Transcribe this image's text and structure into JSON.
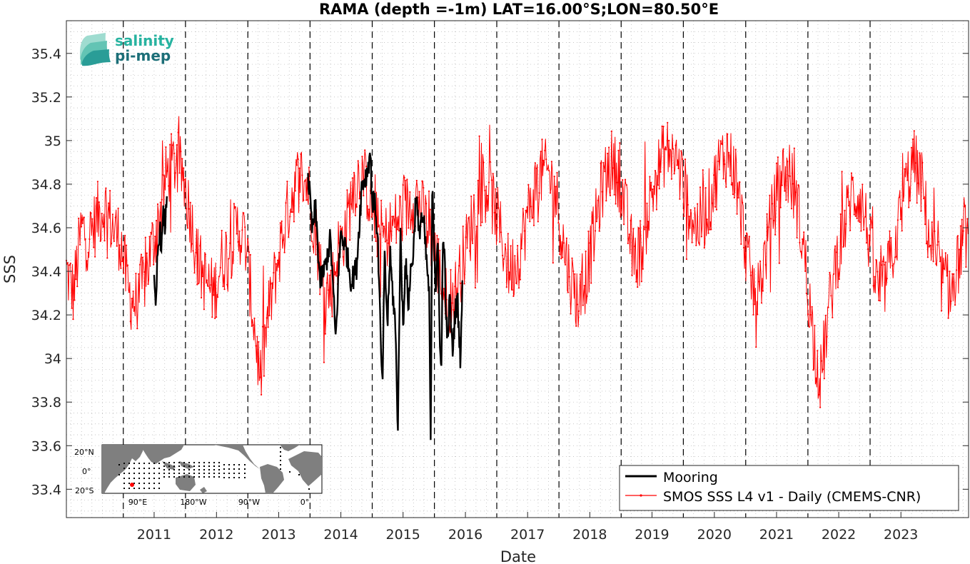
{
  "chart_data": {
    "type": "line",
    "title": "RAMA (depth =-1m) LAT=16.00°S;LON=80.50°E",
    "xlabel": "Date",
    "ylabel": "SSS",
    "xlim": [
      "2010-02-01",
      "2024-08-01"
    ],
    "ylim": [
      33.27,
      35.55
    ],
    "x_ticks": [
      "2011",
      "2012",
      "2013",
      "2014",
      "2015",
      "2016",
      "2017",
      "2018",
      "2019",
      "2020",
      "2021",
      "2022",
      "2023"
    ],
    "y_ticks": [
      "33.4",
      "33.6",
      "33.8",
      "34",
      "34.2",
      "34.4",
      "34.6",
      "34.8",
      "35",
      "35.2",
      "35.4"
    ],
    "grid": "minor dotted",
    "year_markers": "dashed vertical lines at January 1st",
    "legend_position": "bottom-right",
    "series": [
      {
        "name": "Mooring",
        "color": "#000000",
        "style": "thick line",
        "segments": [
          {
            "x": [
              "2011-07-01",
              "2011-07-10",
              "2011-07-20",
              "2011-08-01",
              "2011-08-15",
              "2011-08-25",
              "2011-09-05",
              "2011-09-15"
            ],
            "y": [
              34.35,
              34.19,
              34.45,
              34.6,
              34.52,
              34.66,
              34.6,
              34.8
            ]
          },
          {
            "x": [
              "2013-12-20",
              "2014-01-15",
              "2014-02-01",
              "2014-03-01",
              "2014-04-01",
              "2014-05-01",
              "2014-06-01",
              "2014-06-15",
              "2014-07-01",
              "2014-08-01",
              "2014-09-01",
              "2014-10-01",
              "2014-11-01",
              "2014-12-01",
              "2014-12-20",
              "2015-01-01",
              "2015-01-20",
              "2015-02-05",
              "2015-02-15",
              "2015-03-01",
              "2015-03-15",
              "2015-04-01",
              "2015-04-15",
              "2015-05-01",
              "2015-05-15",
              "2015-06-01",
              "2015-06-15",
              "2015-07-01",
              "2015-07-15",
              "2015-08-01",
              "2015-08-15",
              "2015-09-01",
              "2015-09-15",
              "2015-10-01",
              "2015-10-15",
              "2015-11-01",
              "2015-11-15",
              "2015-12-01",
              "2015-12-10",
              "2015-12-20",
              "2016-01-01",
              "2016-01-10",
              "2016-01-20",
              "2016-02-01",
              "2016-02-10",
              "2016-02-20",
              "2016-03-01",
              "2016-03-15",
              "2016-04-01",
              "2016-04-15",
              "2016-05-01",
              "2016-05-15",
              "2016-06-01",
              "2016-06-15"
            ],
            "y": [
              34.85,
              34.58,
              34.7,
              34.35,
              34.42,
              34.55,
              34.08,
              34.35,
              34.58,
              34.5,
              34.35,
              34.42,
              34.8,
              34.85,
              34.95,
              34.72,
              34.7,
              34.5,
              34.2,
              33.85,
              34.45,
              34.15,
              34.48,
              34.3,
              34.18,
              33.68,
              34.58,
              34.15,
              34.45,
              34.25,
              34.4,
              34.5,
              34.78,
              34.55,
              34.66,
              34.6,
              34.45,
              34.3,
              33.59,
              34.82,
              34.5,
              34.32,
              34.6,
              34.05,
              33.96,
              34.52,
              34.48,
              34.05,
              34.28,
              34.02,
              34.2,
              34.28,
              34.01,
              34.36
            ]
          }
        ]
      },
      {
        "name": "SMOS SSS L4 v1 - Daily (CMEMS-CNR)",
        "color": "#ff0000",
        "style": "thin line with point markers",
        "x": [
          "2010-02-01",
          "2010-03-15",
          "2010-05-01",
          "2010-06-15",
          "2010-08-01",
          "2010-09-15",
          "2010-11-01",
          "2010-12-15",
          "2011-02-01",
          "2011-03-15",
          "2011-05-01",
          "2011-06-15",
          "2011-08-01",
          "2011-09-15",
          "2011-11-01",
          "2011-12-15",
          "2012-02-01",
          "2012-03-15",
          "2012-05-01",
          "2012-06-15",
          "2012-08-01",
          "2012-09-15",
          "2012-11-01",
          "2012-12-15",
          "2013-02-01",
          "2013-03-15",
          "2013-05-01",
          "2013-06-15",
          "2013-08-01",
          "2013-09-15",
          "2013-11-01",
          "2013-12-15",
          "2014-02-01",
          "2014-03-15",
          "2014-05-01",
          "2014-06-15",
          "2014-08-01",
          "2014-09-15",
          "2014-11-01",
          "2014-12-15",
          "2015-02-01",
          "2015-03-15",
          "2015-05-01",
          "2015-06-15",
          "2015-08-01",
          "2015-09-15",
          "2015-11-01",
          "2015-12-15",
          "2016-02-01",
          "2016-03-15",
          "2016-05-01",
          "2016-06-15",
          "2016-08-01",
          "2016-09-15",
          "2016-11-01",
          "2016-12-15",
          "2017-02-01",
          "2017-03-15",
          "2017-05-01",
          "2017-06-15",
          "2017-08-01",
          "2017-09-15",
          "2017-11-01",
          "2017-12-15",
          "2018-02-01",
          "2018-03-15",
          "2018-05-01",
          "2018-06-15",
          "2018-08-01",
          "2018-09-15",
          "2018-11-01",
          "2018-12-15",
          "2019-02-01",
          "2019-03-15",
          "2019-05-01",
          "2019-06-15",
          "2019-08-01",
          "2019-09-15",
          "2019-11-01",
          "2019-12-15",
          "2020-02-01",
          "2020-03-15",
          "2020-05-01",
          "2020-06-15",
          "2020-08-01",
          "2020-09-15",
          "2020-11-01",
          "2020-12-15",
          "2021-02-01",
          "2021-03-15",
          "2021-05-01",
          "2021-06-15",
          "2021-08-01",
          "2021-09-15",
          "2021-11-01",
          "2021-12-15",
          "2022-02-01",
          "2022-03-15",
          "2022-05-01",
          "2022-06-15",
          "2022-08-01",
          "2022-09-15",
          "2022-11-01",
          "2022-12-15",
          "2023-02-01",
          "2023-03-15",
          "2023-05-01",
          "2023-06-15",
          "2023-08-01",
          "2023-09-15",
          "2023-11-01",
          "2023-12-15",
          "2024-02-01",
          "2024-03-15",
          "2024-05-01",
          "2024-06-15",
          "2024-08-01"
        ],
        "y": [
          34.4,
          34.3,
          34.6,
          34.55,
          34.65,
          34.7,
          34.6,
          34.55,
          34.3,
          34.25,
          34.35,
          34.5,
          34.65,
          34.85,
          34.9,
          34.85,
          34.65,
          34.45,
          34.35,
          34.3,
          34.45,
          34.5,
          34.6,
          34.55,
          34.2,
          33.9,
          34.2,
          34.4,
          34.6,
          34.75,
          34.85,
          34.8,
          34.6,
          34.35,
          34.3,
          34.5,
          34.6,
          34.8,
          34.85,
          34.75,
          34.6,
          34.55,
          34.6,
          34.65,
          34.7,
          34.75,
          34.65,
          34.55,
          34.4,
          34.25,
          34.3,
          34.45,
          34.6,
          34.75,
          34.8,
          34.7,
          34.55,
          34.4,
          34.45,
          34.6,
          34.75,
          34.85,
          34.85,
          34.75,
          34.5,
          34.35,
          34.25,
          34.4,
          34.6,
          34.8,
          34.9,
          34.85,
          34.65,
          34.45,
          34.5,
          34.7,
          34.85,
          34.95,
          34.95,
          34.85,
          34.7,
          34.6,
          34.65,
          34.75,
          34.9,
          34.95,
          34.85,
          34.6,
          34.35,
          34.3,
          34.5,
          34.7,
          34.85,
          34.85,
          34.7,
          34.45,
          34.1,
          33.9,
          34.2,
          34.45,
          34.6,
          34.75,
          34.75,
          34.6,
          34.35,
          34.3,
          34.45,
          34.6,
          34.8,
          34.9,
          34.8,
          34.55,
          34.4,
          34.35,
          34.3,
          34.5,
          34.6
        ]
      }
    ]
  },
  "logo": {
    "line1": "salinity",
    "line2": "pi-mep",
    "color_top": "#27b3a0",
    "color_bottom": "#1c6f78"
  },
  "inset_map": {
    "lat_labels": [
      "20°N",
      "0°",
      "20°S"
    ],
    "lon_labels": [
      "90°E",
      "180°W",
      "90°W",
      "0°"
    ],
    "marker_color": "#ff0000"
  }
}
